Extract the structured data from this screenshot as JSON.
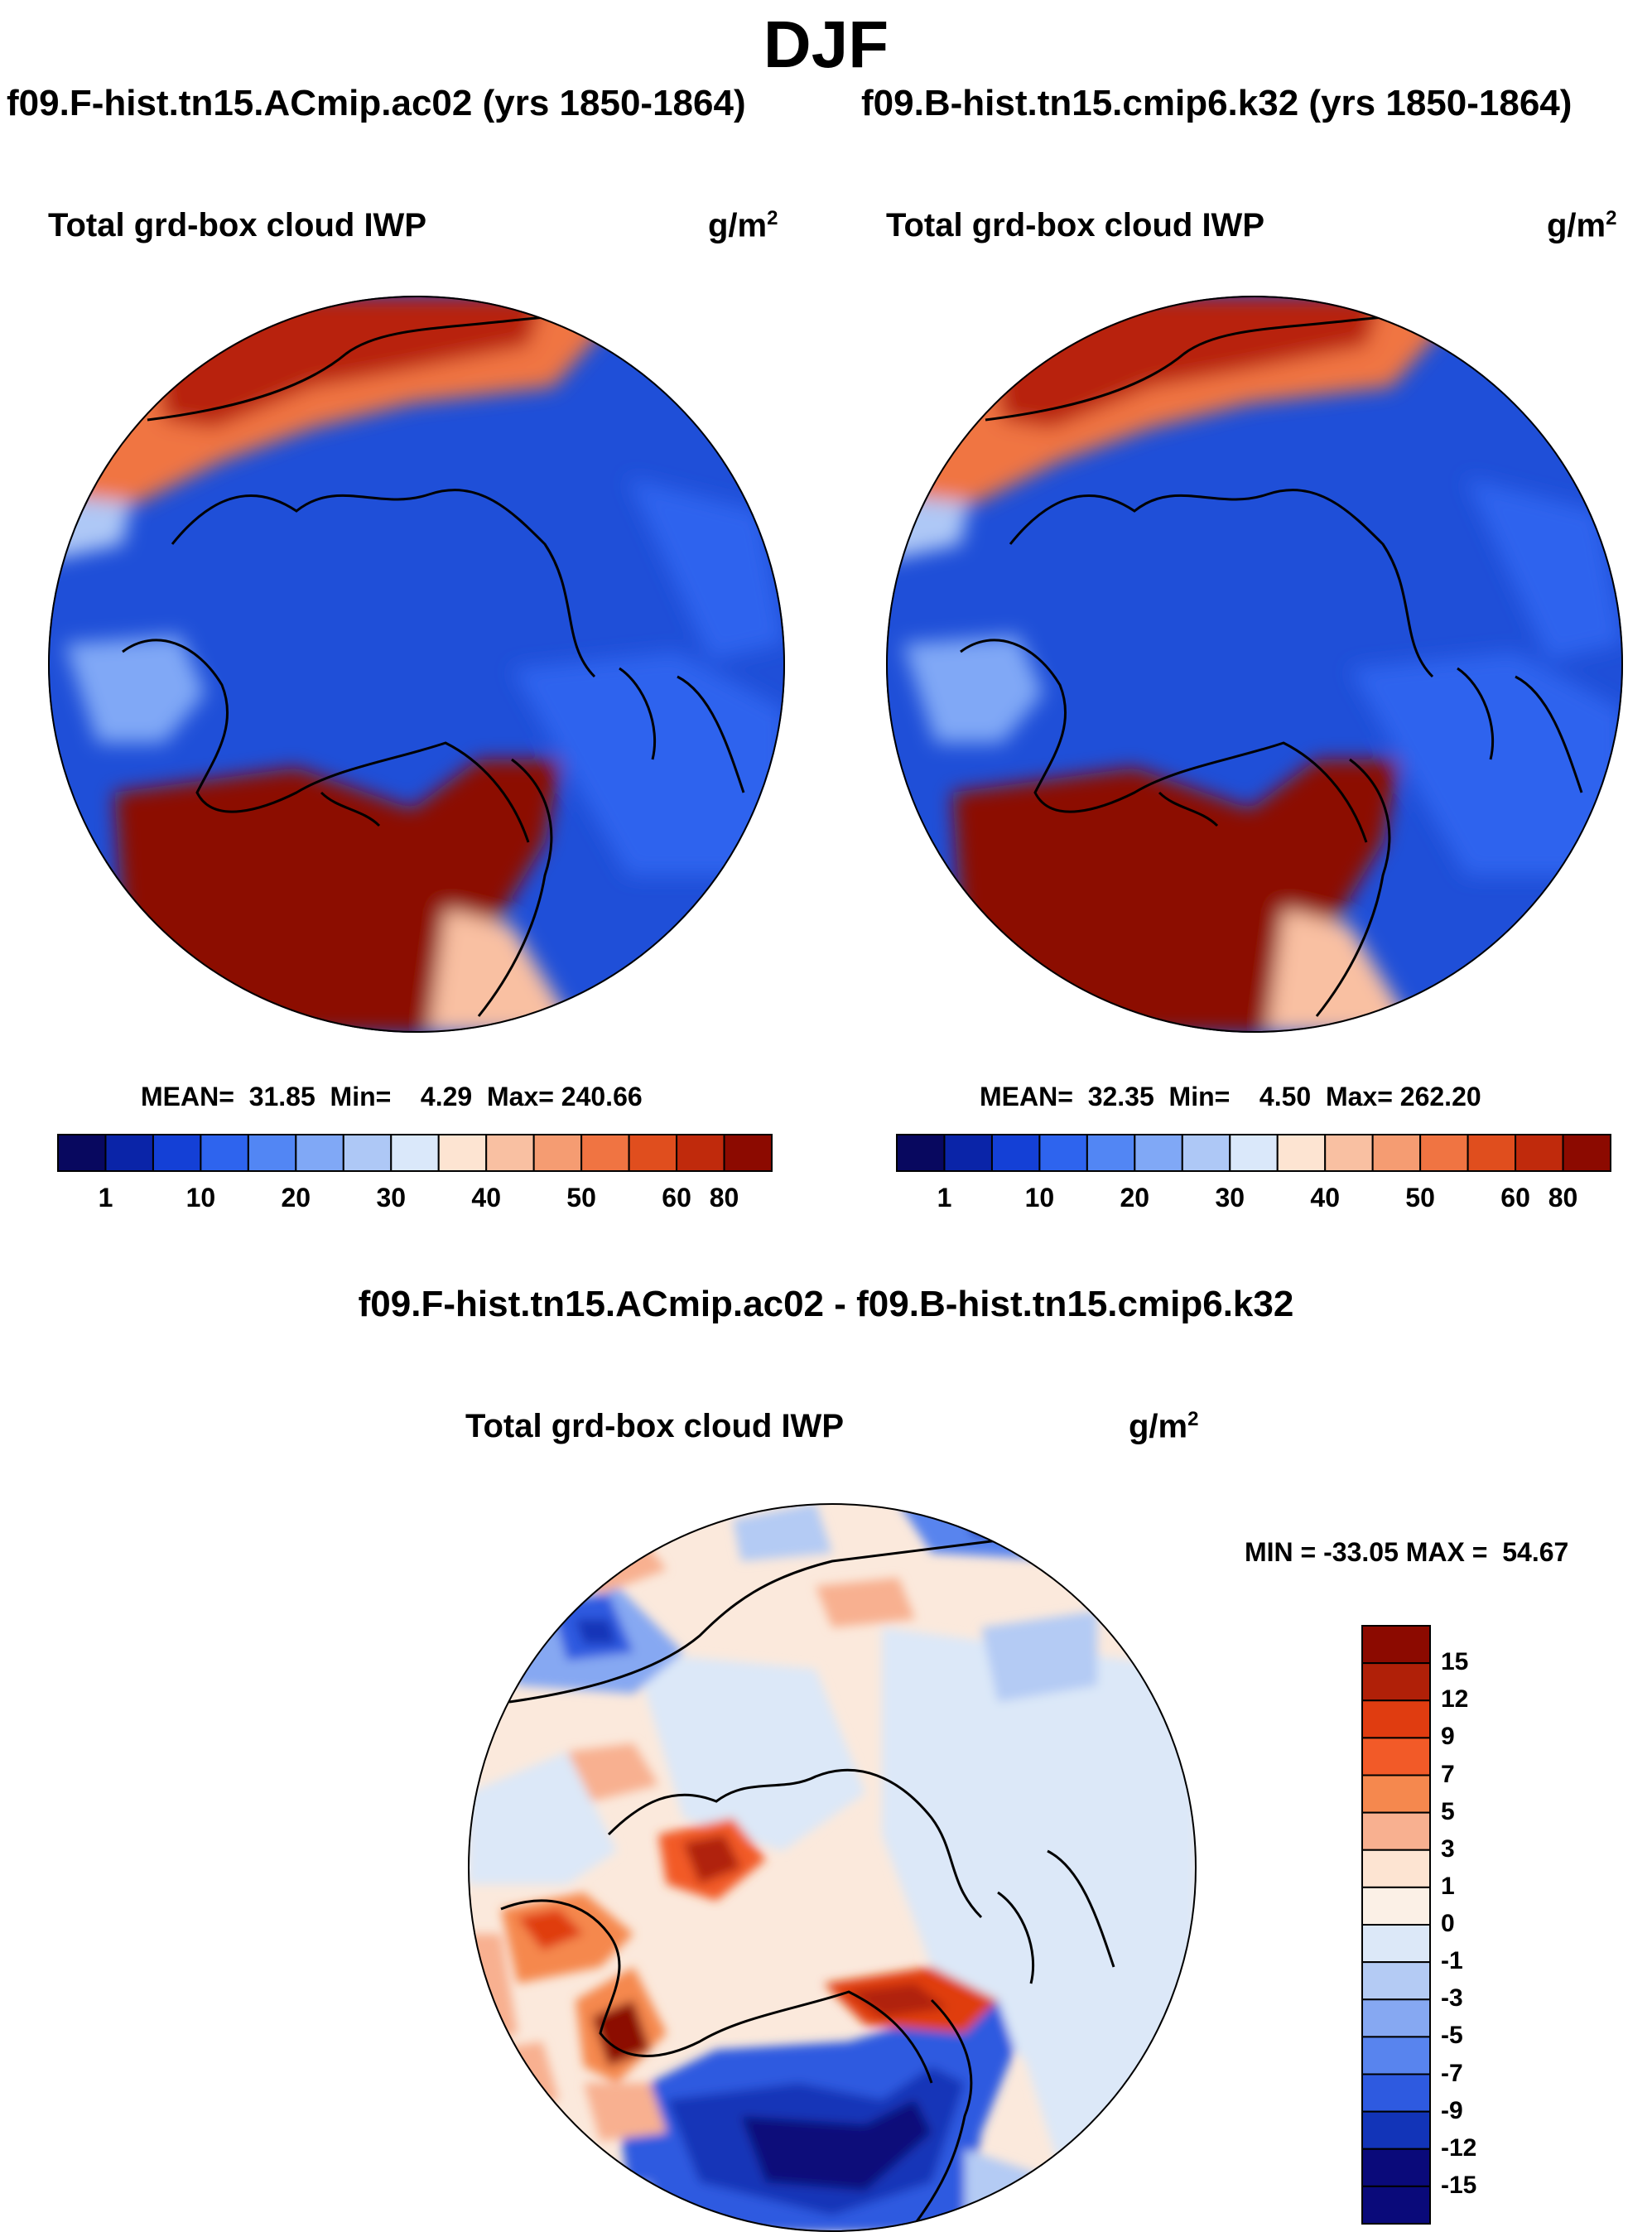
{
  "figure": {
    "season": "DJF",
    "panels": [
      {
        "case_title": "f09.F-hist.tn15.ACmip.ac02 (yrs 1850-1864)",
        "variable": "Total grd-box cloud IWP",
        "units_base": "g/m",
        "units_sup": "2",
        "stats": {
          "mean_label": "MEAN=",
          "mean": "31.85",
          "min_label": "Min=",
          "min": "4.29",
          "max_label": "Max=",
          "max": "240.66"
        }
      },
      {
        "case_title": "f09.B-hist.tn15.cmip6.k32 (yrs 1850-1864)",
        "variable": "Total grd-box cloud IWP",
        "units_base": "g/m",
        "units_sup": "2",
        "stats": {
          "mean_label": "MEAN=",
          "mean": "32.35",
          "min_label": "Min=",
          "min": "4.50",
          "max_label": "Max=",
          "max": "262.20"
        }
      }
    ],
    "diff": {
      "title": "f09.F-hist.tn15.ACmip.ac02 - f09.B-hist.tn15.cmip6.k32",
      "variable": "Total grd-box cloud IWP",
      "units_base": "g/m",
      "units_sup": "2",
      "minmax": "MIN = -33.05 MAX =  54.67"
    }
  },
  "chart_data": [
    {
      "type": "heatmap",
      "projection": "north-polar-stereographic",
      "title": "Total grd-box cloud IWP",
      "case": "f09.F-hist.tn15.ACmip.ac02 (yrs 1850-1864)",
      "units": "g/m2",
      "mean": 31.85,
      "min": 4.29,
      "max": 240.66,
      "colorbar_ticks": [
        "1",
        "10",
        "20",
        "30",
        "40",
        "50",
        "60",
        "80"
      ],
      "colorbar_colors": [
        "#08085f",
        "#0a24a8",
        "#1440d6",
        "#2e64ee",
        "#5286f4",
        "#80a8f6",
        "#aec8f6",
        "#dae8fa",
        "#fde4d2",
        "#f9c0a2",
        "#f59c72",
        "#f07442",
        "#e04e1e",
        "#c02a0c",
        "#8c0a00"
      ],
      "colorbar_position": "bottom"
    },
    {
      "type": "heatmap",
      "projection": "north-polar-stereographic",
      "title": "Total grd-box cloud IWP",
      "case": "f09.B-hist.tn15.cmip6.k32 (yrs 1850-1864)",
      "units": "g/m2",
      "mean": 32.35,
      "min": 4.5,
      "max": 262.2,
      "colorbar_ticks": [
        "1",
        "10",
        "20",
        "30",
        "40",
        "50",
        "60",
        "80"
      ],
      "colorbar_colors": [
        "#08085f",
        "#0a24a8",
        "#1440d6",
        "#2e64ee",
        "#5286f4",
        "#80a8f6",
        "#aec8f6",
        "#dae8fa",
        "#fde4d2",
        "#f9c0a2",
        "#f59c72",
        "#f07442",
        "#e04e1e",
        "#c02a0c",
        "#8c0a00"
      ],
      "colorbar_position": "bottom"
    },
    {
      "type": "heatmap",
      "projection": "north-polar-stereographic",
      "title": "Total grd-box cloud IWP",
      "case": "f09.F-hist.tn15.ACmip.ac02 - f09.B-hist.tn15.cmip6.k32",
      "units": "g/m2",
      "min": -33.05,
      "max": 54.67,
      "colorbar_ticks": [
        "15",
        "12",
        "9",
        "7",
        "5",
        "3",
        "1",
        "0",
        "-1",
        "-3",
        "-5",
        "-7",
        "-9",
        "-12",
        "-15"
      ],
      "colorbar_colors": [
        "#8c0a00",
        "#b02008",
        "#e03c10",
        "#f25a28",
        "#f5884e",
        "#f8b090",
        "#fde4d2",
        "#fbf0e6",
        "#dce8f8",
        "#b4cbf4",
        "#86a8f2",
        "#5884ee",
        "#2e5ae0",
        "#1234b8",
        "#0a0a7a"
      ],
      "colorbar_position": "right"
    }
  ]
}
